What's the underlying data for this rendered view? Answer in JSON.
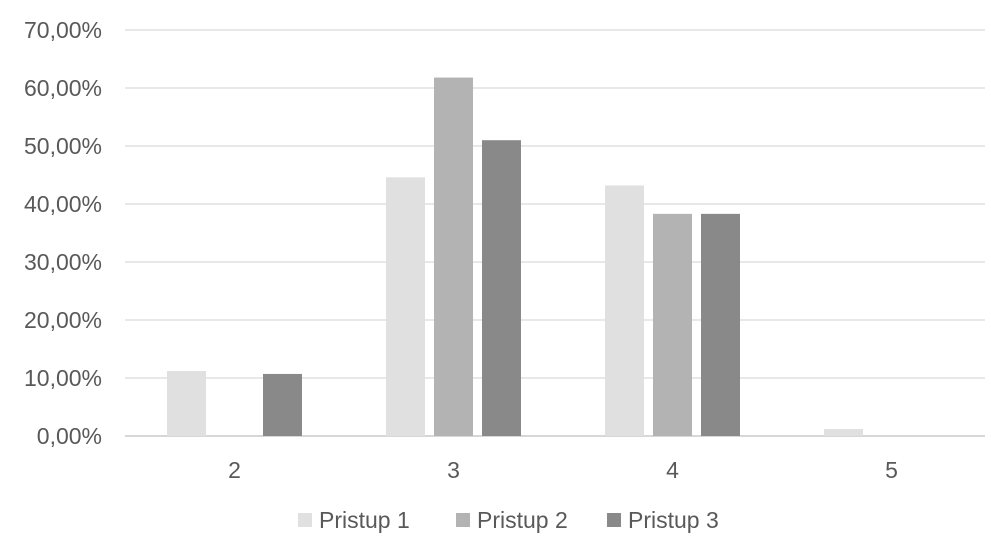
{
  "chart_data": {
    "type": "bar",
    "categories": [
      "2",
      "3",
      "4",
      "5"
    ],
    "series": [
      {
        "name": "Pristup 1",
        "color": "#e0e0e0",
        "values": [
          11.2,
          44.6,
          43.2,
          1.2
        ]
      },
      {
        "name": "Pristup 2",
        "color": "#b3b3b3",
        "values": [
          0,
          61.8,
          38.3,
          0
        ]
      },
      {
        "name": "Pristup 3",
        "color": "#898989",
        "values": [
          10.7,
          51.0,
          38.3,
          0
        ]
      }
    ],
    "ylim": [
      0,
      70
    ],
    "yticks": [
      0,
      10,
      20,
      30,
      40,
      50,
      60,
      70
    ],
    "ytick_labels": [
      "0,00%",
      "10,00%",
      "20,00%",
      "30,00%",
      "40,00%",
      "50,00%",
      "60,00%",
      "70,00%"
    ],
    "grid": true,
    "legend_position": "bottom",
    "title": "",
    "xlabel": "",
    "ylabel": ""
  }
}
